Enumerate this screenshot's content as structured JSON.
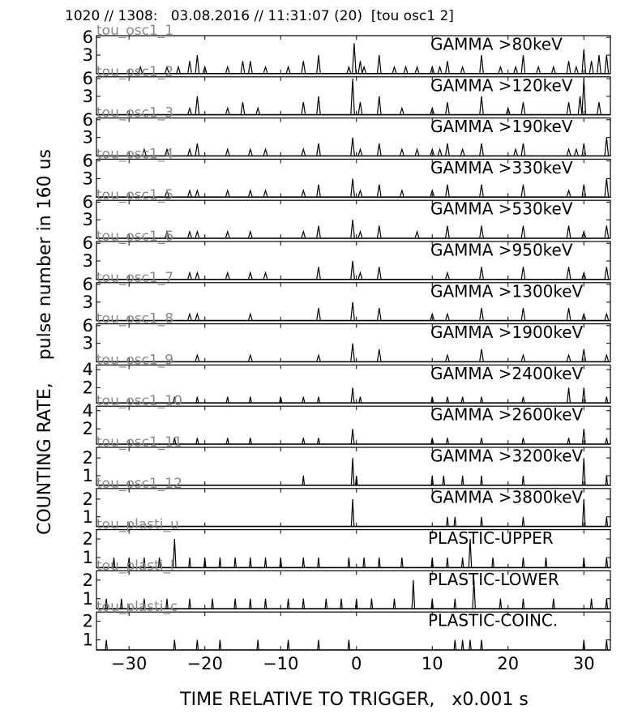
{
  "title": "1020 // 1308:   03.08.2016 // 11:31:07 (20)  [tou osc1 2]",
  "ylabel": "COUNTING RATE,    pulse number in 160 us",
  "xlabel": "TIME RELATIVE TO TRIGGER,   x0.001 s",
  "chart_data": [
    {
      "type": "spike",
      "channel": "tou_osc1_1",
      "label": "GAMMA >80keV",
      "ylim": [
        -0.15,
        6.3
      ],
      "yticks": [
        3,
        6
      ],
      "x": [
        -28.5,
        -25,
        -23.5,
        -22,
        -21,
        -20,
        -17,
        -15,
        -14,
        -12,
        -9,
        -7,
        -5,
        -1,
        -0.3,
        0.5,
        1,
        3,
        5,
        6.5,
        8,
        10,
        11,
        12,
        14,
        16.5,
        19,
        21,
        22,
        24,
        26,
        28,
        29,
        30,
        31,
        32,
        33
      ],
      "values": [
        1,
        1,
        1,
        2,
        3,
        1,
        1,
        2,
        2,
        1,
        1,
        2,
        3,
        1,
        5,
        2,
        1,
        3,
        1,
        1,
        1,
        1,
        1,
        2,
        1,
        3,
        1,
        1,
        3,
        1,
        1,
        2,
        1,
        4,
        2,
        3,
        3
      ]
    },
    {
      "type": "spike",
      "channel": "tou_osc1_2",
      "label": "GAMMA >120keV",
      "ylim": [
        -0.15,
        6.3
      ],
      "yticks": [
        3,
        6
      ],
      "x": [
        -22,
        -21,
        -17,
        -15,
        -13,
        -7,
        -5,
        -0.5,
        0.5,
        3,
        6,
        10,
        12,
        16.5,
        20,
        22,
        28,
        29.5,
        30,
        32
      ],
      "values": [
        1,
        3,
        1,
        2,
        1,
        2,
        3,
        6,
        2,
        3,
        1,
        1,
        2,
        3,
        1,
        2,
        2,
        3,
        6,
        2
      ]
    },
    {
      "type": "spike",
      "channel": "tou_osc1_3",
      "label": "GAMMA >190keV",
      "ylim": [
        -0.15,
        6.3
      ],
      "yticks": [
        3,
        6
      ],
      "x": [
        -28,
        -25,
        -22,
        -21,
        -17,
        -14,
        -12,
        -7,
        -5,
        -0.5,
        0.5,
        3,
        6,
        8,
        10,
        11,
        12,
        14,
        16.5,
        21,
        22,
        28,
        29,
        30,
        33
      ],
      "values": [
        1,
        1,
        1,
        2,
        1,
        1,
        1,
        1,
        2,
        3,
        1,
        2,
        1,
        1,
        1,
        1,
        2,
        1,
        2,
        1,
        2,
        1,
        1,
        2,
        3
      ]
    },
    {
      "type": "spike",
      "channel": "tou_osc1_4",
      "label": "GAMMA >330keV",
      "ylim": [
        -0.15,
        6.3
      ],
      "yticks": [
        3,
        6
      ],
      "x": [
        -25,
        -22,
        -21,
        -17,
        -14,
        -12,
        -7,
        -5,
        -0.5,
        0.5,
        3,
        6,
        10,
        12,
        16.5,
        22,
        28,
        30,
        33
      ],
      "values": [
        1,
        1,
        1,
        1,
        1,
        1,
        1,
        2,
        3,
        1,
        2,
        1,
        1,
        2,
        2,
        2,
        1,
        2,
        3
      ]
    },
    {
      "type": "spike",
      "channel": "tou_osc1_5",
      "label": "GAMMA >530keV",
      "ylim": [
        -0.15,
        6.3
      ],
      "yticks": [
        3,
        6
      ],
      "x": [
        -25,
        -22,
        -21,
        -17,
        -14,
        -7,
        -5,
        -0.5,
        0.5,
        3,
        8,
        12,
        16.5,
        22,
        28,
        30,
        33
      ],
      "values": [
        1,
        1,
        1,
        1,
        1,
        1,
        2,
        3,
        1,
        2,
        1,
        2,
        2,
        2,
        2,
        1,
        2
      ]
    },
    {
      "type": "spike",
      "channel": "tou_osc1_6",
      "label": "GAMMA >950keV",
      "ylim": [
        -0.15,
        6.3
      ],
      "yticks": [
        3,
        6
      ],
      "x": [
        -22,
        -21,
        -17,
        -14,
        -12,
        -5,
        -0.5,
        0.5,
        3,
        12,
        16.5,
        22,
        28,
        30,
        33
      ],
      "values": [
        1,
        1,
        1,
        1,
        1,
        2,
        3,
        1,
        2,
        1,
        2,
        2,
        2,
        1,
        2
      ]
    },
    {
      "type": "spike",
      "channel": "tou_osc1_7",
      "label": "GAMMA >1300keV",
      "ylim": [
        -0.15,
        6.3
      ],
      "yticks": [
        3,
        6
      ],
      "x": [
        -22,
        -21,
        -14,
        -5,
        -0.5,
        3,
        10,
        12,
        16.5,
        22,
        28,
        30,
        33
      ],
      "values": [
        1,
        1,
        1,
        2,
        3,
        2,
        1,
        1,
        2,
        2,
        2,
        1,
        1
      ]
    },
    {
      "type": "spike",
      "channel": "tou_osc1_8",
      "label": "GAMMA >1900keV",
      "ylim": [
        -0.15,
        6.3
      ],
      "yticks": [
        3,
        6
      ],
      "x": [
        -21,
        -14,
        -5,
        -0.5,
        3,
        12,
        16.5,
        22,
        28,
        30,
        33
      ],
      "values": [
        1,
        1,
        1,
        3,
        2,
        1,
        2,
        1,
        1,
        2,
        1
      ]
    },
    {
      "type": "spike",
      "channel": "tou_osc1_9",
      "label": "GAMMA >2400keV",
      "ylim": [
        0.3,
        4.5
      ],
      "yticks": [
        2,
        4
      ],
      "x": [
        -24,
        -21,
        -17,
        -14,
        -10,
        -7,
        -5,
        -0.5,
        0.5,
        10,
        12,
        14,
        16.5,
        22,
        28,
        30,
        33
      ],
      "values": [
        1,
        1,
        1,
        1,
        1,
        1,
        1,
        2,
        1,
        1,
        1,
        1,
        1,
        1,
        2,
        2,
        1
      ]
    },
    {
      "type": "spike",
      "channel": "tou_osc1_10",
      "label": "GAMMA >2600keV",
      "ylim": [
        0.3,
        4.5
      ],
      "yticks": [
        2,
        4
      ],
      "x": [
        -24,
        -21,
        -17,
        -14,
        -7,
        -5,
        -0.5,
        10,
        12,
        16.5,
        22,
        28,
        30,
        33
      ],
      "values": [
        1,
        1,
        1,
        1,
        1,
        1,
        2,
        1,
        1,
        1,
        1,
        1,
        2,
        1
      ]
    },
    {
      "type": "spike",
      "channel": "tou_osc1_11",
      "label": "GAMMA >3200keV",
      "ylim": [
        0.45,
        2.6
      ],
      "yticks": [
        1,
        2
      ],
      "x": [
        -7,
        -0.5,
        0,
        10,
        11.5,
        14,
        16.5,
        22,
        30,
        33
      ],
      "values": [
        1,
        2,
        1,
        1,
        1,
        1,
        1,
        1,
        2,
        1
      ]
    },
    {
      "type": "spike",
      "channel": "tou_osc1_12",
      "label": "GAMMA >3800keV",
      "ylim": [
        0.45,
        2.6
      ],
      "yticks": [
        1,
        2
      ],
      "x": [
        -0.5,
        12,
        13,
        16.5,
        22,
        30,
        33
      ],
      "values": [
        2,
        1,
        1,
        1,
        1,
        2,
        1
      ]
    },
    {
      "type": "spike",
      "channel": "tou_plasti_u",
      "label": "PLASTIC-UPPER",
      "ylim": [
        0.45,
        2.5
      ],
      "yticks": [
        1,
        2
      ],
      "x": [
        -32,
        -30,
        -28,
        -26,
        -24,
        -22,
        -20,
        -18,
        -16,
        -14,
        -12,
        -10,
        -7,
        -5,
        -1,
        1,
        3,
        6,
        10,
        12,
        14,
        15,
        18,
        22,
        25,
        30,
        33
      ],
      "values": [
        1,
        1,
        1,
        1,
        2,
        1,
        1,
        1,
        1,
        1,
        1,
        1,
        1,
        1,
        1,
        1,
        1,
        1,
        1,
        1,
        1,
        2,
        1,
        1,
        1,
        1,
        1
      ]
    },
    {
      "type": "spike",
      "channel": "tou_plasti_l",
      "label": "PLASTIC-LOWER",
      "ylim": [
        0.45,
        2.5
      ],
      "yticks": [
        1,
        2
      ],
      "x": [
        -33,
        -31,
        -28,
        -25,
        -22,
        -19,
        -16,
        -14,
        -12,
        -9,
        -7,
        -4,
        -2,
        0,
        2,
        5,
        7.5,
        10,
        13,
        15.5,
        19,
        22,
        26,
        31,
        33
      ],
      "values": [
        1,
        1,
        1,
        1,
        1,
        1,
        1,
        1,
        1,
        1,
        1,
        1,
        1,
        1,
        1,
        1,
        2,
        1,
        1,
        2,
        1,
        1,
        1,
        1,
        1
      ]
    },
    {
      "type": "spike",
      "channel": "tou_plasti_c",
      "label": "PLASTIC-COINC.",
      "ylim": [
        0.45,
        2.5
      ],
      "yticks": [
        1,
        2
      ],
      "x": [
        -33,
        -24,
        -21,
        -18,
        -13,
        -9,
        -5,
        -1,
        13,
        14,
        15,
        16.5,
        30,
        33
      ],
      "values": [
        1,
        1,
        1,
        1,
        1,
        1,
        1,
        1,
        1,
        1,
        1,
        1,
        1,
        1
      ],
      "xlim": [
        -34.3,
        33.5
      ],
      "xticks": [
        {
          "value": -30,
          "label": "−30"
        },
        {
          "value": -20,
          "label": "−20"
        },
        {
          "value": -10,
          "label": "−10"
        },
        {
          "value": 0,
          "label": "0"
        },
        10,
        20,
        30
      ]
    }
  ]
}
